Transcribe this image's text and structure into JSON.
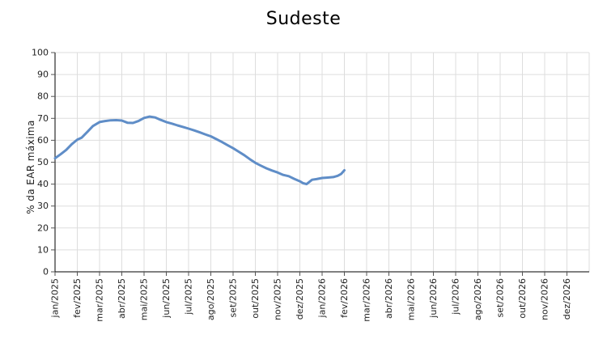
{
  "page_title": "Sudeste",
  "chart_data": {
    "type": "line",
    "title": "Sudeste",
    "xlabel": "",
    "ylabel": "% da EAR máxima",
    "ylim": [
      0,
      100
    ],
    "y_ticks": [
      0,
      10,
      20,
      30,
      40,
      50,
      60,
      70,
      80,
      90,
      100
    ],
    "x_tick_labels": [
      "jan/2025",
      "fev/2025",
      "mar/2025",
      "abr/2025",
      "mai/2025",
      "jun/2025",
      "jul/2025",
      "ago/2025",
      "set/2025",
      "out/2025",
      "nov/2025",
      "dez/2025",
      "jan/2026",
      "fev/2026",
      "mar/2026",
      "abr/2026",
      "mai/2026",
      "jun/2026",
      "jul/2026",
      "ago/2026",
      "set/2026",
      "out/2026",
      "nov/2026",
      "dez/2026"
    ],
    "grid": true,
    "legend": false,
    "colors": {
      "line": "#5f8dc7",
      "grid": "#dddddd",
      "axis": "#000000",
      "tick": "#555555",
      "text": "#222222",
      "background": "#ffffff"
    },
    "series": [
      {
        "name": "% da EAR máxima",
        "color": "#5f8dc7",
        "x_months": [
          0,
          0.25,
          0.5,
          0.75,
          1.0,
          1.2,
          1.45,
          1.7,
          2.0,
          2.25,
          2.5,
          2.75,
          3.0,
          3.25,
          3.5,
          3.75,
          4.0,
          4.25,
          4.5,
          4.75,
          5.0,
          5.25,
          5.5,
          5.75,
          6.0,
          6.25,
          6.5,
          6.75,
          7.0,
          7.25,
          7.5,
          7.75,
          8.0,
          8.25,
          8.5,
          8.75,
          9.0,
          9.25,
          9.5,
          9.75,
          10.0,
          10.25,
          10.5,
          10.75,
          11.0,
          11.15,
          11.3,
          11.55,
          11.75,
          12.0,
          12.25,
          12.5,
          12.7,
          12.85,
          13.0
        ],
        "values": [
          51.8,
          53.6,
          55.6,
          58.2,
          60.3,
          61.2,
          63.8,
          66.5,
          68.3,
          68.8,
          69.1,
          69.2,
          69.0,
          68.0,
          67.9,
          68.8,
          70.2,
          70.8,
          70.4,
          69.3,
          68.3,
          67.6,
          66.8,
          66.1,
          65.3,
          64.5,
          63.6,
          62.7,
          61.8,
          60.5,
          59.2,
          57.8,
          56.4,
          54.8,
          53.2,
          51.4,
          49.7,
          48.4,
          47.2,
          46.2,
          45.3,
          44.2,
          43.6,
          42.4,
          41.3,
          40.4,
          40.0,
          42.0,
          42.3,
          42.8,
          43.0,
          43.2,
          43.8,
          44.6,
          46.3
        ]
      }
    ]
  }
}
